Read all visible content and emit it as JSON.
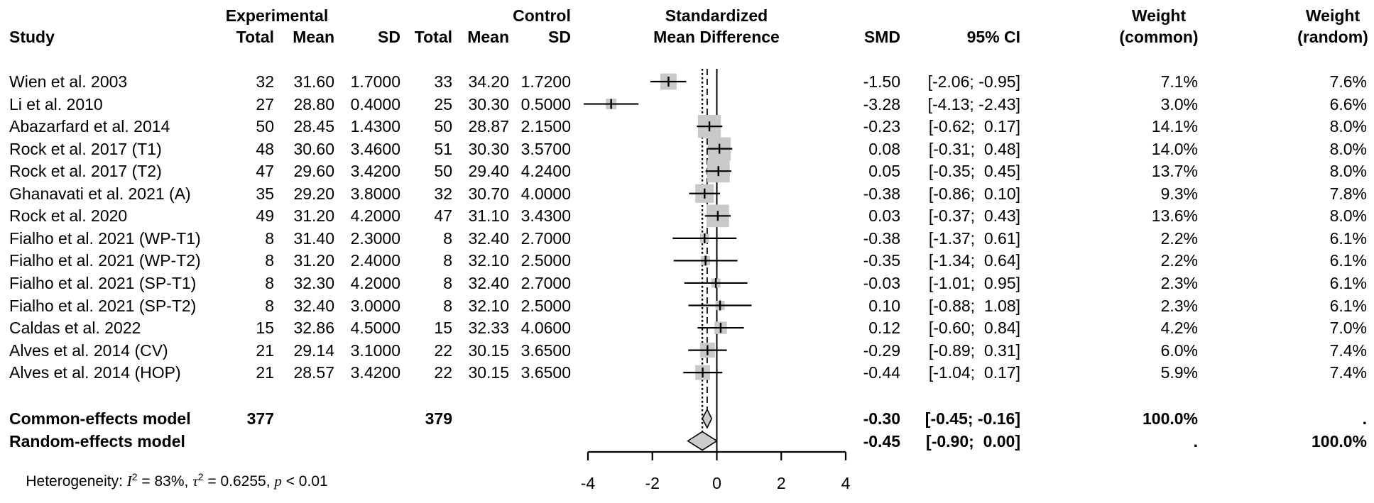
{
  "header": {
    "group_experimental": "Experimental",
    "group_control": "Control",
    "effect_line1": "Standardized",
    "effect_line2": "Mean Difference",
    "weight_label": "Weight",
    "weight_common_sub": "(common)",
    "weight_random_sub": "(random)",
    "study": "Study",
    "total": "Total",
    "mean": "Mean",
    "sd": "SD",
    "smd": "SMD",
    "ci": "95% CI"
  },
  "chart_data": {
    "type": "scatter",
    "variant": "forest-plot",
    "title": "",
    "xlabel": "Standardized Mean Difference",
    "x_axis": {
      "ticks": [
        "-4",
        "-2",
        "0",
        "2",
        "4"
      ],
      "tick_values": [
        -4,
        -2,
        0,
        2,
        4
      ],
      "lim": [
        -4,
        4
      ]
    },
    "reference_lines": [
      {
        "style": "solid",
        "x": 0,
        "meaning": "no-effect"
      },
      {
        "style": "dashed",
        "x": -0.3,
        "meaning": "common-effect-estimate"
      },
      {
        "style": "dotted",
        "x": -0.45,
        "meaning": "random-effect-estimate"
      }
    ],
    "colors": {
      "square_fill": "#c9c9c9",
      "diamond_fill": "#cccccc",
      "line": "#000000"
    },
    "studies": [
      {
        "study": "Wien et al. 2003",
        "exp_total": "32",
        "exp_mean": "31.60",
        "exp_sd": "1.7000",
        "ctrl_total": "33",
        "ctrl_mean": "34.20",
        "ctrl_sd": "1.7200",
        "smd": -1.5,
        "smd_text": "-1.50",
        "ci_lower": -2.06,
        "ci_upper": -0.95,
        "ci_text": "[-2.06; -0.95]",
        "weight_common": 7.1,
        "weight_common_text": "7.1%",
        "weight_random_text": "7.6%"
      },
      {
        "study": "Li et al. 2010",
        "exp_total": "27",
        "exp_mean": "28.80",
        "exp_sd": "0.4000",
        "ctrl_total": "25",
        "ctrl_mean": "30.30",
        "ctrl_sd": "0.5000",
        "smd": -3.28,
        "smd_text": "-3.28",
        "ci_lower": -4.13,
        "ci_upper": -2.43,
        "ci_text": "[-4.13; -2.43]",
        "weight_common": 3.0,
        "weight_common_text": "3.0%",
        "weight_random_text": "6.6%"
      },
      {
        "study": "Abazarfard et al. 2014",
        "exp_total": "50",
        "exp_mean": "28.45",
        "exp_sd": "1.4300",
        "ctrl_total": "50",
        "ctrl_mean": "28.87",
        "ctrl_sd": "2.1500",
        "smd": -0.23,
        "smd_text": "-0.23",
        "ci_lower": -0.62,
        "ci_upper": 0.17,
        "ci_text": "[-0.62;  0.17]",
        "weight_common": 14.1,
        "weight_common_text": "14.1%",
        "weight_random_text": "8.0%"
      },
      {
        "study": "Rock et al. 2017 (T1)",
        "exp_total": "48",
        "exp_mean": "30.60",
        "exp_sd": "3.4600",
        "ctrl_total": "51",
        "ctrl_mean": "30.30",
        "ctrl_sd": "3.5700",
        "smd": 0.08,
        "smd_text": "0.08",
        "ci_lower": -0.31,
        "ci_upper": 0.48,
        "ci_text": "[-0.31;  0.48]",
        "weight_common": 14.0,
        "weight_common_text": "14.0%",
        "weight_random_text": "8.0%"
      },
      {
        "study": "Rock et al. 2017 (T2)",
        "exp_total": "47",
        "exp_mean": "29.60",
        "exp_sd": "3.4200",
        "ctrl_total": "50",
        "ctrl_mean": "29.40",
        "ctrl_sd": "4.2400",
        "smd": 0.05,
        "smd_text": "0.05",
        "ci_lower": -0.35,
        "ci_upper": 0.45,
        "ci_text": "[-0.35;  0.45]",
        "weight_common": 13.7,
        "weight_common_text": "13.7%",
        "weight_random_text": "8.0%"
      },
      {
        "study": "Ghanavati et al. 2021 (A)",
        "exp_total": "35",
        "exp_mean": "29.20",
        "exp_sd": "3.8000",
        "ctrl_total": "32",
        "ctrl_mean": "30.70",
        "ctrl_sd": "4.0000",
        "smd": -0.38,
        "smd_text": "-0.38",
        "ci_lower": -0.86,
        "ci_upper": 0.1,
        "ci_text": "[-0.86;  0.10]",
        "weight_common": 9.3,
        "weight_common_text": "9.3%",
        "weight_random_text": "7.8%"
      },
      {
        "study": "Rock et al. 2020",
        "exp_total": "49",
        "exp_mean": "31.20",
        "exp_sd": "4.2000",
        "ctrl_total": "47",
        "ctrl_mean": "31.10",
        "ctrl_sd": "3.4300",
        "smd": 0.03,
        "smd_text": "0.03",
        "ci_lower": -0.37,
        "ci_upper": 0.43,
        "ci_text": "[-0.37;  0.43]",
        "weight_common": 13.6,
        "weight_common_text": "13.6%",
        "weight_random_text": "8.0%"
      },
      {
        "study": "Fialho et al. 2021 (WP-T1)",
        "exp_total": "8",
        "exp_mean": "31.40",
        "exp_sd": "2.3000",
        "ctrl_total": "8",
        "ctrl_mean": "32.40",
        "ctrl_sd": "2.7000",
        "smd": -0.38,
        "smd_text": "-0.38",
        "ci_lower": -1.37,
        "ci_upper": 0.61,
        "ci_text": "[-1.37;  0.61]",
        "weight_common": 2.2,
        "weight_common_text": "2.2%",
        "weight_random_text": "6.1%"
      },
      {
        "study": "Fialho et al. 2021 (WP-T2)",
        "exp_total": "8",
        "exp_mean": "31.20",
        "exp_sd": "2.4000",
        "ctrl_total": "8",
        "ctrl_mean": "32.10",
        "ctrl_sd": "2.5000",
        "smd": -0.35,
        "smd_text": "-0.35",
        "ci_lower": -1.34,
        "ci_upper": 0.64,
        "ci_text": "[-1.34;  0.64]",
        "weight_common": 2.2,
        "weight_common_text": "2.2%",
        "weight_random_text": "6.1%"
      },
      {
        "study": "Fialho et al. 2021 (SP-T1)",
        "exp_total": "8",
        "exp_mean": "32.30",
        "exp_sd": "4.2000",
        "ctrl_total": "8",
        "ctrl_mean": "32.40",
        "ctrl_sd": "2.7000",
        "smd": -0.03,
        "smd_text": "-0.03",
        "ci_lower": -1.01,
        "ci_upper": 0.95,
        "ci_text": "[-1.01;  0.95]",
        "weight_common": 2.3,
        "weight_common_text": "2.3%",
        "weight_random_text": "6.1%"
      },
      {
        "study": "Fialho et al. 2021 (SP-T2)",
        "exp_total": "8",
        "exp_mean": "32.40",
        "exp_sd": "3.0000",
        "ctrl_total": "8",
        "ctrl_mean": "32.10",
        "ctrl_sd": "2.5000",
        "smd": 0.1,
        "smd_text": "0.10",
        "ci_lower": -0.88,
        "ci_upper": 1.08,
        "ci_text": "[-0.88;  1.08]",
        "weight_common": 2.3,
        "weight_common_text": "2.3%",
        "weight_random_text": "6.1%"
      },
      {
        "study": "Caldas et al. 2022",
        "exp_total": "15",
        "exp_mean": "32.86",
        "exp_sd": "4.5000",
        "ctrl_total": "15",
        "ctrl_mean": "32.33",
        "ctrl_sd": "4.0600",
        "smd": 0.12,
        "smd_text": "0.12",
        "ci_lower": -0.6,
        "ci_upper": 0.84,
        "ci_text": "[-0.60;  0.84]",
        "weight_common": 4.2,
        "weight_common_text": "4.2%",
        "weight_random_text": "7.0%"
      },
      {
        "study": "Alves et al. 2014 (CV)",
        "exp_total": "21",
        "exp_mean": "29.14",
        "exp_sd": "3.1000",
        "ctrl_total": "22",
        "ctrl_mean": "30.15",
        "ctrl_sd": "3.6500",
        "smd": -0.29,
        "smd_text": "-0.29",
        "ci_lower": -0.89,
        "ci_upper": 0.31,
        "ci_text": "[-0.89;  0.31]",
        "weight_common": 6.0,
        "weight_common_text": "6.0%",
        "weight_random_text": "7.4%"
      },
      {
        "study": "Alves et al. 2014 (HOP)",
        "exp_total": "21",
        "exp_mean": "28.57",
        "exp_sd": "3.4200",
        "ctrl_total": "22",
        "ctrl_mean": "30.15",
        "ctrl_sd": "3.6500",
        "smd": -0.44,
        "smd_text": "-0.44",
        "ci_lower": -1.04,
        "ci_upper": 0.17,
        "ci_text": "[-1.04;  0.17]",
        "weight_common": 5.9,
        "weight_common_text": "5.9%",
        "weight_random_text": "7.4%"
      }
    ],
    "pooled": [
      {
        "label": "Common-effects model",
        "exp_total": "377",
        "ctrl_total": "379",
        "smd": -0.3,
        "smd_text": "-0.30",
        "ci_lower": -0.45,
        "ci_upper": -0.16,
        "ci_text": "[-0.45; -0.16]",
        "weight_common_text": "100.0%",
        "weight_random_text": "."
      },
      {
        "label": "Random-effects model",
        "exp_total": "",
        "ctrl_total": "",
        "smd": -0.45,
        "smd_text": "-0.45",
        "ci_lower": -0.9,
        "ci_upper": 0.0,
        "ci_text": "[-0.90;  0.00]",
        "weight_common_text": ".",
        "weight_random_text": "100.0%"
      }
    ],
    "heterogeneity": {
      "prefix": "Heterogeneity: ",
      "i_sym": "I",
      "i_sup": "2",
      "i_val": " = 83%, ",
      "tau_sym": "τ",
      "tau_sup": "2",
      "tau_val": " = 0.6255, ",
      "p_sym": "p",
      "p_val": " < 0.01"
    }
  }
}
